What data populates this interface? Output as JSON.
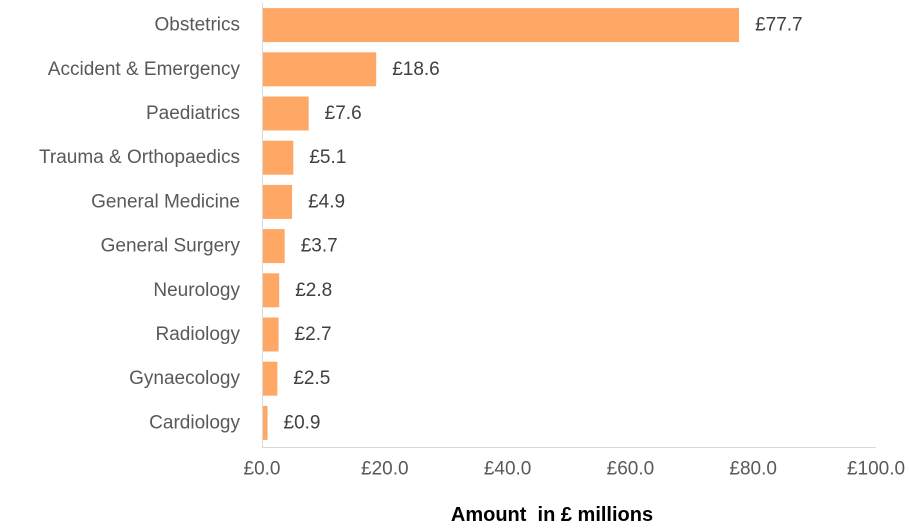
{
  "chart_data": {
    "type": "bar",
    "orientation": "horizontal",
    "categories": [
      "Obstetrics",
      "Accident & Emergency",
      "Paediatrics",
      "Trauma & Orthopaedics",
      "General Medicine",
      "General Surgery",
      "Neurology",
      "Radiology",
      "Gynaecology",
      "Cardiology"
    ],
    "values": [
      77.7,
      18.6,
      7.6,
      5.1,
      4.9,
      3.7,
      2.8,
      2.7,
      2.5,
      0.9
    ],
    "value_labels": [
      "£77.7",
      "£18.6",
      "£7.6",
      "£5.1",
      "£4.9",
      "£3.7",
      "£2.8",
      "£2.7",
      "£2.5",
      "£0.9"
    ],
    "x_ticks": [
      0,
      20,
      40,
      60,
      80,
      100
    ],
    "x_tick_labels": [
      "£0.0",
      "£20.0",
      "£40.0",
      "£60.0",
      "£80.0",
      "£100.0"
    ],
    "xlim": [
      0,
      100
    ],
    "xlabel": "Amount  in £ millions",
    "ylabel": "",
    "title": "",
    "grid": false,
    "legend": "none",
    "bar_color": "#FFA866",
    "axis_color": "#D9D9D9"
  }
}
